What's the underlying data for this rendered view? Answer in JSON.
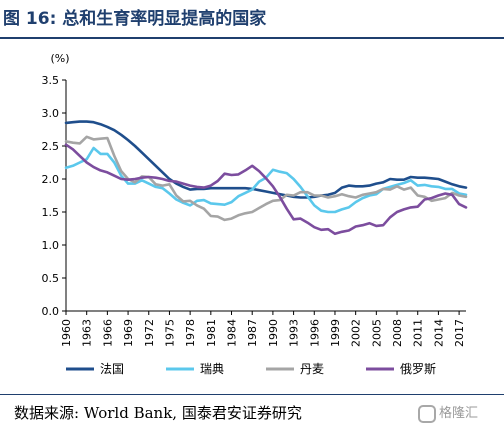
{
  "header": {
    "title": "图 16: 总和生育率明显提高的国家"
  },
  "footer": {
    "source": "数据来源: World Bank, 国泰君安证券研究",
    "watermark": "格隆汇"
  },
  "chart_data": {
    "type": "line",
    "title": "",
    "ylabel": "(%)",
    "xlabel": "",
    "ylim": [
      0,
      3.5
    ],
    "yticks": [
      "0.0",
      "0.5",
      "1.0",
      "1.5",
      "2.0",
      "2.5",
      "3.0",
      "3.5"
    ],
    "xticks": [
      "1960",
      "1963",
      "1966",
      "1969",
      "1972",
      "1975",
      "1978",
      "1981",
      "1984",
      "1987",
      "1990",
      "1993",
      "1996",
      "1999",
      "2002",
      "2005",
      "2008",
      "2011",
      "2014",
      "2017"
    ],
    "grid": false,
    "legend_position": "bottom",
    "x": [
      1960,
      1961,
      1962,
      1963,
      1964,
      1965,
      1966,
      1967,
      1968,
      1969,
      1970,
      1971,
      1972,
      1973,
      1974,
      1975,
      1976,
      1977,
      1978,
      1979,
      1980,
      1981,
      1982,
      1983,
      1984,
      1985,
      1986,
      1987,
      1988,
      1989,
      1990,
      1991,
      1992,
      1993,
      1994,
      1995,
      1996,
      1997,
      1998,
      1999,
      2000,
      2001,
      2002,
      2003,
      2004,
      2005,
      2006,
      2007,
      2008,
      2009,
      2010,
      2011,
      2012,
      2013,
      2014,
      2015,
      2016,
      2017,
      2018
    ],
    "series": [
      {
        "name": "法国",
        "color": "#1f4e8c",
        "values": [
          2.85,
          2.86,
          2.87,
          2.87,
          2.86,
          2.83,
          2.79,
          2.74,
          2.67,
          2.59,
          2.5,
          2.4,
          2.3,
          2.2,
          2.1,
          2.0,
          1.93,
          1.88,
          1.84,
          1.85,
          1.85,
          1.86,
          1.86,
          1.86,
          1.86,
          1.86,
          1.86,
          1.85,
          1.83,
          1.81,
          1.79,
          1.77,
          1.75,
          1.73,
          1.72,
          1.72,
          1.73,
          1.75,
          1.76,
          1.79,
          1.87,
          1.9,
          1.89,
          1.89,
          1.9,
          1.93,
          1.95,
          2.0,
          1.99,
          1.99,
          2.03,
          2.02,
          2.02,
          2.01,
          2.0,
          1.96,
          1.92,
          1.89,
          1.87
        ]
      },
      {
        "name": "瑞典",
        "color": "#5bc8ec",
        "values": [
          2.17,
          2.2,
          2.25,
          2.3,
          2.47,
          2.38,
          2.38,
          2.25,
          2.05,
          1.93,
          1.93,
          1.98,
          1.93,
          1.88,
          1.86,
          1.78,
          1.69,
          1.64,
          1.6,
          1.67,
          1.68,
          1.63,
          1.62,
          1.61,
          1.65,
          1.74,
          1.79,
          1.84,
          1.96,
          2.02,
          2.14,
          2.11,
          2.09,
          2.0,
          1.88,
          1.74,
          1.6,
          1.52,
          1.5,
          1.5,
          1.54,
          1.57,
          1.65,
          1.71,
          1.75,
          1.77,
          1.85,
          1.88,
          1.91,
          1.94,
          1.98,
          1.9,
          1.91,
          1.89,
          1.88,
          1.85,
          1.85,
          1.78,
          1.76
        ]
      },
      {
        "name": "丹麦",
        "color": "#a5a5a5",
        "values": [
          2.57,
          2.55,
          2.54,
          2.64,
          2.6,
          2.61,
          2.62,
          2.35,
          2.12,
          2.0,
          1.95,
          2.04,
          2.03,
          1.92,
          1.9,
          1.92,
          1.75,
          1.66,
          1.67,
          1.6,
          1.55,
          1.44,
          1.43,
          1.38,
          1.4,
          1.45,
          1.48,
          1.5,
          1.56,
          1.62,
          1.67,
          1.68,
          1.76,
          1.75,
          1.8,
          1.8,
          1.75,
          1.75,
          1.72,
          1.74,
          1.77,
          1.74,
          1.72,
          1.76,
          1.78,
          1.8,
          1.85,
          1.84,
          1.89,
          1.84,
          1.87,
          1.75,
          1.73,
          1.67,
          1.69,
          1.71,
          1.79,
          1.75,
          1.73
        ]
      },
      {
        "name": "俄罗斯",
        "color": "#7c4d9e",
        "values": [
          2.52,
          2.45,
          2.35,
          2.25,
          2.18,
          2.13,
          2.1,
          2.05,
          2.0,
          1.99,
          2.0,
          2.02,
          2.03,
          2.02,
          2.0,
          1.97,
          1.96,
          1.93,
          1.9,
          1.88,
          1.87,
          1.9,
          1.97,
          2.08,
          2.06,
          2.07,
          2.13,
          2.2,
          2.12,
          2.01,
          1.89,
          1.73,
          1.55,
          1.39,
          1.4,
          1.34,
          1.27,
          1.23,
          1.24,
          1.17,
          1.2,
          1.22,
          1.28,
          1.3,
          1.33,
          1.29,
          1.3,
          1.42,
          1.5,
          1.54,
          1.57,
          1.58,
          1.69,
          1.71,
          1.75,
          1.78,
          1.76,
          1.62,
          1.57
        ]
      }
    ]
  }
}
